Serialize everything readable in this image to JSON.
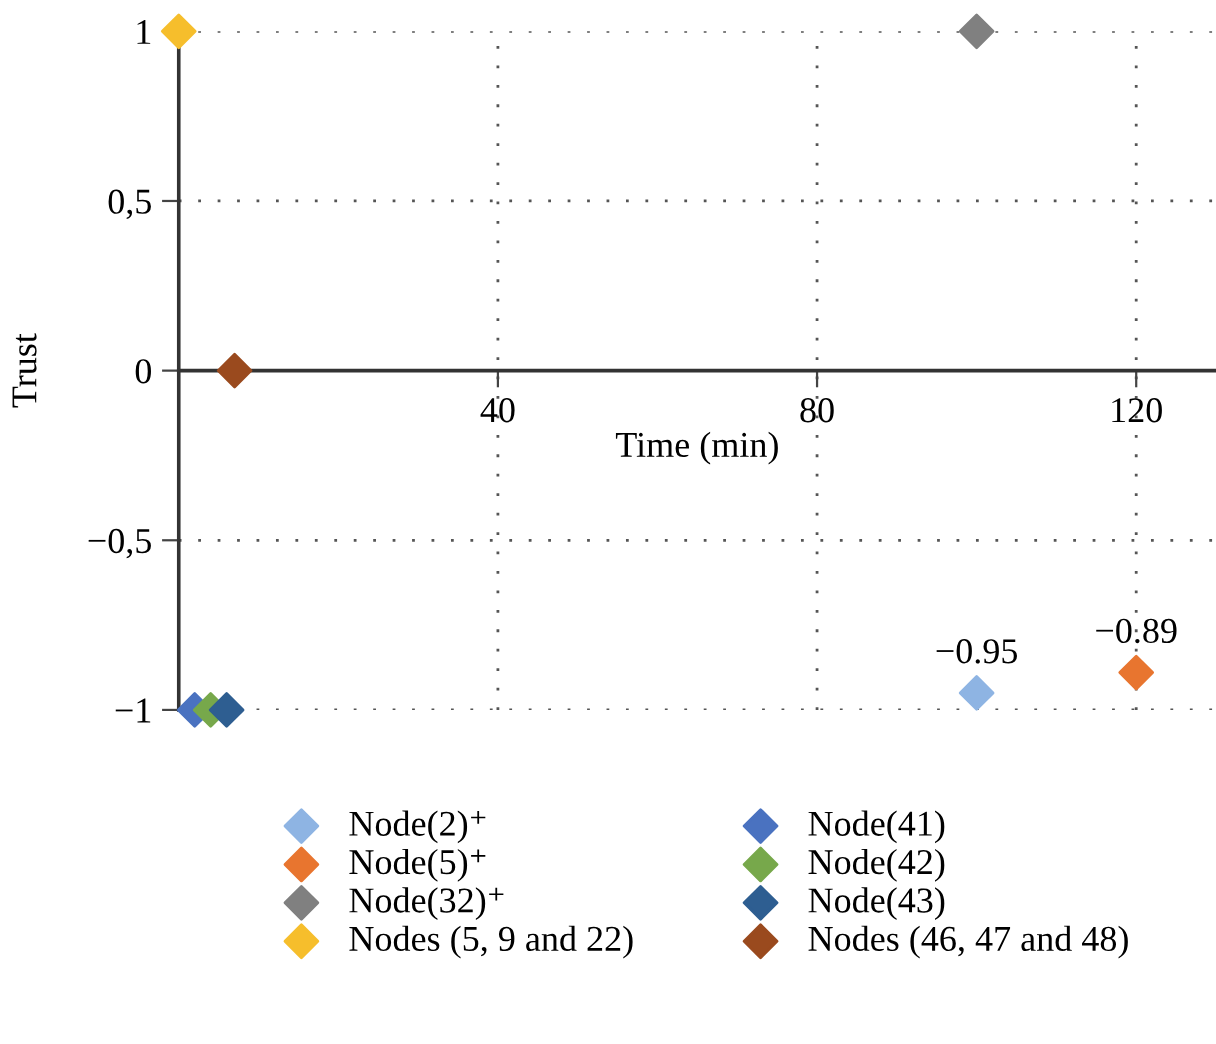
{
  "chart_data": {
    "type": "scatter",
    "xlabel": "Time (min)",
    "ylabel": "Trust",
    "xlim": [
      0,
      130
    ],
    "ylim": [
      -1,
      1
    ],
    "xticks": [
      40,
      80,
      120
    ],
    "yticks": [
      {
        "value": -1,
        "label": "−1"
      },
      {
        "value": -0.5,
        "label": "−0,5"
      },
      0,
      {
        "value": 0.5,
        "label": "0,5"
      },
      1
    ],
    "grid": true,
    "legend": "bottom",
    "marker": "diamond",
    "series": [
      {
        "name": "Node(2)⁺",
        "color": "#8eb4e3",
        "x": [
          100
        ],
        "values": [
          -0.95
        ],
        "value_labels": [
          "−0.95"
        ]
      },
      {
        "name": "Node(5)⁺",
        "color": "#e8752f",
        "x": [
          120
        ],
        "values": [
          -0.89
        ],
        "value_labels": [
          "−0.89"
        ]
      },
      {
        "name": "Node(32)⁺",
        "color": "#808080",
        "x": [
          100
        ],
        "values": [
          1
        ]
      },
      {
        "name": "Nodes (5, 9 and 22)",
        "color": "#f6be2c",
        "x": [
          0
        ],
        "values": [
          1
        ]
      },
      {
        "name": "Node(41)",
        "color": "#4a72c0",
        "x": [
          2
        ],
        "values": [
          -1
        ]
      },
      {
        "name": "Node(42)",
        "color": "#77a84b",
        "x": [
          4
        ],
        "values": [
          -1
        ]
      },
      {
        "name": "Node(43)",
        "color": "#2e5e91",
        "x": [
          6
        ],
        "values": [
          -1
        ]
      },
      {
        "name": "Nodes (46, 47 and 48)",
        "color": "#9a4a1e",
        "x": [
          7
        ],
        "values": [
          0
        ]
      }
    ]
  }
}
